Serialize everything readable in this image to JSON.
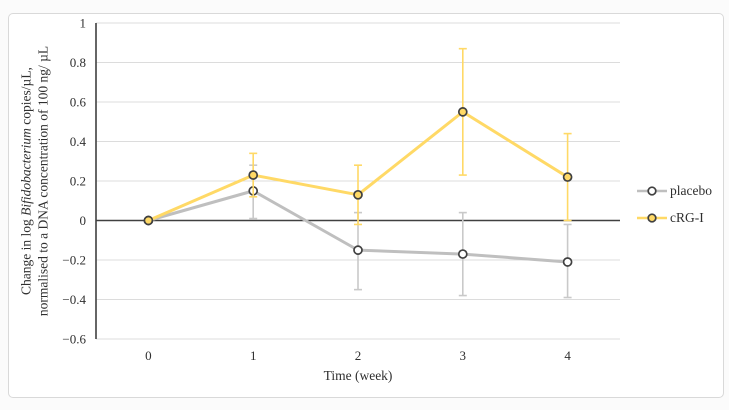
{
  "figure": {
    "background": "#ffffff",
    "border_color": "#d9d9d9",
    "axis_color": "#404040",
    "gridline_color": "#dcdcdc",
    "text_color": "#2f2f2f"
  },
  "chart_data": {
    "type": "line",
    "xlabel": "Time (week)",
    "ylabel_line1_prefix": "Change in log ",
    "ylabel_line1_italic": "Bifidobacterium",
    "ylabel_line1_suffix": " copies/µL,",
    "ylabel_line2": "normalised to a DNA concentration of 100 ng/ µL",
    "x_categories": [
      "0",
      "1",
      "2",
      "3",
      "4"
    ],
    "ylim": [
      -0.6,
      1.0
    ],
    "ytick_step": 0.2,
    "ytick_labels": [
      "1",
      "0.8",
      "0.6",
      "0.4",
      "0.2",
      "0",
      "−0.2",
      "−0.4",
      "−0.6"
    ],
    "grid": true,
    "legend_position": "right",
    "series": [
      {
        "name": "placebo",
        "color": "#bfbfbf",
        "error_color": "#c9c9c9",
        "marker_fill": "#ffffff",
        "marker_stroke": "#404040",
        "values": [
          0,
          0.15,
          -0.15,
          -0.17,
          -0.21
        ],
        "error_low": [
          null,
          0.01,
          -0.35,
          -0.38,
          -0.39
        ],
        "error_high": [
          null,
          0.28,
          0.04,
          0.04,
          -0.02
        ]
      },
      {
        "name": "cRG-I",
        "color": "#ffd966",
        "error_color": "#ffd966",
        "marker_fill": "#ffd966",
        "marker_stroke": "#404040",
        "values": [
          0,
          0.23,
          0.13,
          0.55,
          0.22
        ],
        "error_low": [
          null,
          0.12,
          -0.02,
          0.23,
          0.0
        ],
        "error_high": [
          null,
          0.34,
          0.28,
          0.87,
          0.44
        ]
      }
    ]
  }
}
